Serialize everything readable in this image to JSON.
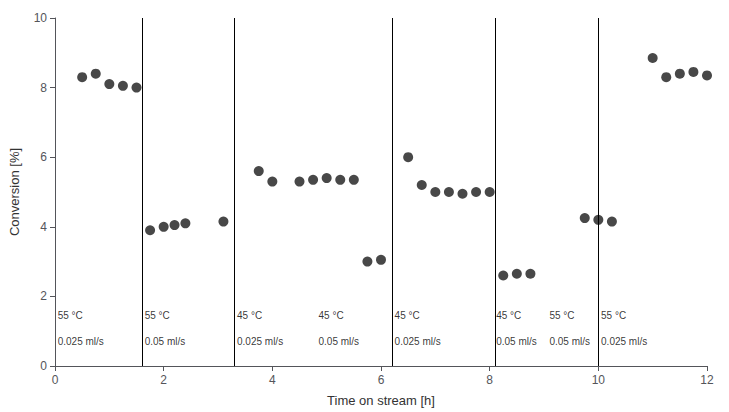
{
  "chart_data": {
    "type": "scatter",
    "xlabel": "Time on stream [h]",
    "ylabel": "Conversion [%]",
    "x": [
      0.5,
      0.75,
      1.0,
      1.25,
      1.5,
      1.75,
      2.0,
      2.2,
      2.4,
      3.1,
      3.75,
      4.0,
      4.5,
      4.75,
      5.0,
      5.25,
      5.5,
      5.75,
      6.0,
      6.5,
      6.75,
      7.0,
      7.25,
      7.5,
      7.75,
      8.0,
      8.25,
      8.5,
      8.75,
      9.75,
      10.0,
      10.25,
      11.0,
      11.25,
      11.5,
      11.75,
      12.0
    ],
    "values": [
      8.3,
      8.4,
      8.1,
      8.05,
      8.0,
      3.9,
      4.0,
      4.05,
      4.1,
      4.15,
      5.6,
      5.3,
      5.3,
      5.35,
      5.4,
      5.35,
      5.35,
      3.0,
      3.05,
      6.0,
      5.2,
      5.0,
      5.0,
      4.95,
      5.0,
      5.0,
      2.6,
      2.65,
      2.65,
      4.25,
      4.2,
      4.15,
      8.85,
      8.3,
      8.4,
      8.45,
      8.35
    ],
    "color": "#1a1a1a",
    "marker": "circle",
    "xlim": [
      0,
      12
    ],
    "ylim": [
      0,
      10
    ],
    "xticks": [
      0,
      2,
      4,
      6,
      8,
      10,
      12
    ],
    "yticks": [
      0,
      2,
      4,
      6,
      8,
      10
    ],
    "grid": false,
    "vlines": {
      "values": [
        1.6,
        3.3,
        6.2,
        8.1,
        10.0
      ],
      "color": "black"
    },
    "annotations": [
      {
        "x": 0.05,
        "y": 1.3,
        "text": "55 °C"
      },
      {
        "x": 0.05,
        "y": 0.55,
        "text": "0.025 ml/s"
      },
      {
        "x": 1.65,
        "y": 1.3,
        "text": "55 °C"
      },
      {
        "x": 1.65,
        "y": 0.55,
        "text": "0.05 ml/s"
      },
      {
        "x": 3.35,
        "y": 1.3,
        "text": "45 °C"
      },
      {
        "x": 3.35,
        "y": 0.55,
        "text": "0.025 ml/s"
      },
      {
        "x": 4.85,
        "y": 1.3,
        "text": "45 °C"
      },
      {
        "x": 4.85,
        "y": 0.55,
        "text": "0.05 ml/s"
      },
      {
        "x": 6.25,
        "y": 1.3,
        "text": "45 °C"
      },
      {
        "x": 6.25,
        "y": 0.55,
        "text": "0.025 ml/s"
      },
      {
        "x": 8.12,
        "y": 1.3,
        "text": "45 °C"
      },
      {
        "x": 8.12,
        "y": 0.55,
        "text": "0.05 ml/s"
      },
      {
        "x": 9.1,
        "y": 1.3,
        "text": "55 °C"
      },
      {
        "x": 9.1,
        "y": 0.55,
        "text": "0.05 ml/s"
      },
      {
        "x": 10.05,
        "y": 1.3,
        "text": "55 °C"
      },
      {
        "x": 10.05,
        "y": 0.55,
        "text": "0.025 ml/s"
      }
    ]
  }
}
